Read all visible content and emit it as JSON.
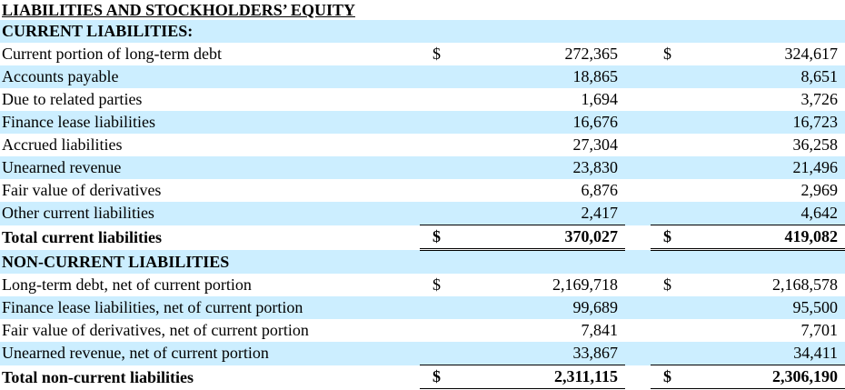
{
  "title": "LIABILITIES AND STOCKHOLDERS’ EQUITY",
  "rows": [
    {
      "kind": "header",
      "label": "CURRENT LIABILITIES:"
    },
    {
      "kind": "item",
      "label": "Current portion of long-term debt",
      "cols": [
        {
          "sign": "$",
          "amount": "272,365"
        },
        {
          "sign": "$",
          "amount": "324,617"
        }
      ]
    },
    {
      "kind": "item",
      "label": "Accounts payable",
      "cols": [
        {
          "amount": "18,865"
        },
        {
          "amount": "8,651"
        }
      ]
    },
    {
      "kind": "item",
      "label": "Due to related parties",
      "cols": [
        {
          "amount": "1,694"
        },
        {
          "amount": "3,726"
        }
      ]
    },
    {
      "kind": "item",
      "label": "Finance lease liabilities",
      "cols": [
        {
          "amount": "16,676"
        },
        {
          "amount": "16,723"
        }
      ]
    },
    {
      "kind": "item",
      "label": "Accrued liabilities",
      "cols": [
        {
          "amount": "27,304"
        },
        {
          "amount": "36,258"
        }
      ]
    },
    {
      "kind": "item",
      "label": "Unearned revenue",
      "cols": [
        {
          "amount": "23,830"
        },
        {
          "amount": "21,496"
        }
      ]
    },
    {
      "kind": "item",
      "label": "Fair value of derivatives",
      "cols": [
        {
          "amount": "6,876"
        },
        {
          "amount": "2,969"
        }
      ]
    },
    {
      "kind": "item",
      "label": "Other current liabilities",
      "cols": [
        {
          "amount": "2,417"
        },
        {
          "amount": "4,642"
        }
      ]
    },
    {
      "kind": "total",
      "label": "Total current liabilities",
      "cols": [
        {
          "sign": "$",
          "amount": "370,027"
        },
        {
          "sign": "$",
          "amount": "419,082"
        }
      ]
    },
    {
      "kind": "header",
      "label": "NON-CURRENT LIABILITIES"
    },
    {
      "kind": "item",
      "label": "Long-term debt, net of current portion",
      "cols": [
        {
          "sign": "$",
          "amount": "2,169,718"
        },
        {
          "sign": "$",
          "amount": "2,168,578"
        }
      ]
    },
    {
      "kind": "item",
      "label": "Finance lease liabilities, net of current portion",
      "cols": [
        {
          "amount": "99,689"
        },
        {
          "amount": "95,500"
        }
      ]
    },
    {
      "kind": "item",
      "label": "Fair value of derivatives, net of current portion",
      "cols": [
        {
          "amount": "7,841"
        },
        {
          "amount": "7,701"
        }
      ]
    },
    {
      "kind": "item",
      "label": "Unearned revenue, net of current portion",
      "cols": [
        {
          "amount": "33,867"
        },
        {
          "amount": "34,411"
        }
      ]
    },
    {
      "kind": "total",
      "label": "Total non-current liabilities",
      "cols": [
        {
          "sign": "$",
          "amount": "2,311,115"
        },
        {
          "sign": "$",
          "amount": "2,306,190"
        }
      ]
    }
  ]
}
